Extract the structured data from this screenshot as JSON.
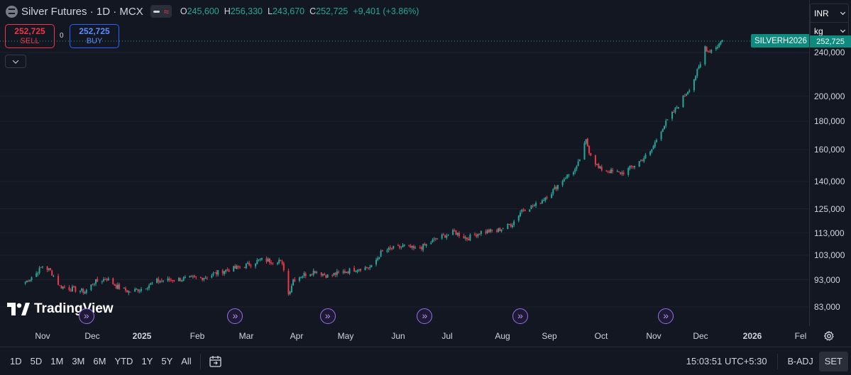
{
  "header": {
    "symbol_title": "Silver Futures · 1D · MCX",
    "ohlc": {
      "o_label": "O",
      "o_value": "245,600",
      "h_label": "H",
      "h_value": "256,330",
      "l_label": "L",
      "l_value": "243,670",
      "c_label": "C",
      "c_value": "252,725",
      "change": "+9,401 (+3.86%)"
    }
  },
  "trade": {
    "sell_price": "252,725",
    "sell_label": "SELL",
    "spread": "0",
    "buy_price": "252,725",
    "buy_label": "BUY"
  },
  "units": {
    "currency": "INR",
    "unit": "kg"
  },
  "ticker_label": "SILVERH2026",
  "last_price_tag": "252,725",
  "watermark": "TradingView",
  "colors": {
    "up": "#26a69a",
    "down": "#f23645",
    "background": "#131722",
    "event": "#9c6ff2"
  },
  "chart_data": {
    "type": "candlestick",
    "scale": "log",
    "y_ticks": [
      83000,
      93000,
      103000,
      113000,
      125000,
      140000,
      160000,
      180000,
      200000,
      240000
    ],
    "y_tick_labels": [
      "83,000",
      "93,000",
      "103,000",
      "113,000",
      "125,000",
      "140,000",
      "160,000",
      "180,000",
      "200,000",
      "240,000"
    ],
    "x_ticks": [
      "Nov",
      "Dec",
      "2025",
      "Feb",
      "Mar",
      "Apr",
      "May",
      "Jun",
      "Jul",
      "Aug",
      "Sep",
      "Oct",
      "Nov",
      "Dec",
      "2026",
      "Fel"
    ],
    "anchors": [
      [
        "2024-10-21",
        92000
      ],
      [
        "2024-10-28",
        95500
      ],
      [
        "2024-11-01",
        98500
      ],
      [
        "2024-11-06",
        96500
      ],
      [
        "2024-11-12",
        90500
      ],
      [
        "2024-11-20",
        89500
      ],
      [
        "2024-11-28",
        88500
      ],
      [
        "2024-12-04",
        92000
      ],
      [
        "2024-12-12",
        93500
      ],
      [
        "2024-12-18",
        90500
      ],
      [
        "2024-12-26",
        88500
      ],
      [
        "2025-01-03",
        89500
      ],
      [
        "2025-01-13",
        92500
      ],
      [
        "2025-01-23",
        93000
      ],
      [
        "2025-02-03",
        93500
      ],
      [
        "2025-02-13",
        94000
      ],
      [
        "2025-02-24",
        96500
      ],
      [
        "2025-03-04",
        97500
      ],
      [
        "2025-03-12",
        99000
      ],
      [
        "2025-03-20",
        101000
      ],
      [
        "2025-03-28",
        100500
      ],
      [
        "2025-04-01",
        101000
      ],
      [
        "2025-04-04",
        97500
      ],
      [
        "2025-04-07",
        87500
      ],
      [
        "2025-04-10",
        93000
      ],
      [
        "2025-04-17",
        95000
      ],
      [
        "2025-04-24",
        96500
      ],
      [
        "2025-05-02",
        94500
      ],
      [
        "2025-05-12",
        96000
      ],
      [
        "2025-05-22",
        97500
      ],
      [
        "2025-05-30",
        98000
      ],
      [
        "2025-06-05",
        104000
      ],
      [
        "2025-06-13",
        106000
      ],
      [
        "2025-06-20",
        107000
      ],
      [
        "2025-06-27",
        105500
      ],
      [
        "2025-07-04",
        107500
      ],
      [
        "2025-07-11",
        110500
      ],
      [
        "2025-07-22",
        113500
      ],
      [
        "2025-07-30",
        110500
      ],
      [
        "2025-08-08",
        113500
      ],
      [
        "2025-08-18",
        114000
      ],
      [
        "2025-08-28",
        117500
      ],
      [
        "2025-09-03",
        124500
      ],
      [
        "2025-09-12",
        127000
      ],
      [
        "2025-09-22",
        134000
      ],
      [
        "2025-09-30",
        142000
      ],
      [
        "2025-10-08",
        148000
      ],
      [
        "2025-10-14",
        166000
      ],
      [
        "2025-10-16",
        159000
      ],
      [
        "2025-10-22",
        148000
      ],
      [
        "2025-10-30",
        146000
      ],
      [
        "2025-11-06",
        145000
      ],
      [
        "2025-11-14",
        150000
      ],
      [
        "2025-11-24",
        158000
      ],
      [
        "2025-12-01",
        174000
      ],
      [
        "2025-12-10",
        189000
      ],
      [
        "2025-12-20",
        209000
      ],
      [
        "2025-12-26",
        228000
      ],
      [
        "2025-12-29",
        246000
      ],
      [
        "2025-12-31",
        241000
      ],
      [
        "2026-01-06",
        247000
      ],
      [
        "2026-01-09",
        252725
      ]
    ],
    "events": [
      "2024-11-29",
      "2025-03-04",
      "2025-05-02",
      "2025-07-03",
      "2025-09-02",
      "2025-12-04"
    ]
  },
  "bottom_bar": {
    "timeframes": [
      "1D",
      "5D",
      "1M",
      "3M",
      "6M",
      "YTD",
      "1Y",
      "5Y",
      "All"
    ],
    "clock": "15:03:51 UTC+5:30",
    "adjustment": "B-ADJ",
    "session": "SET"
  }
}
